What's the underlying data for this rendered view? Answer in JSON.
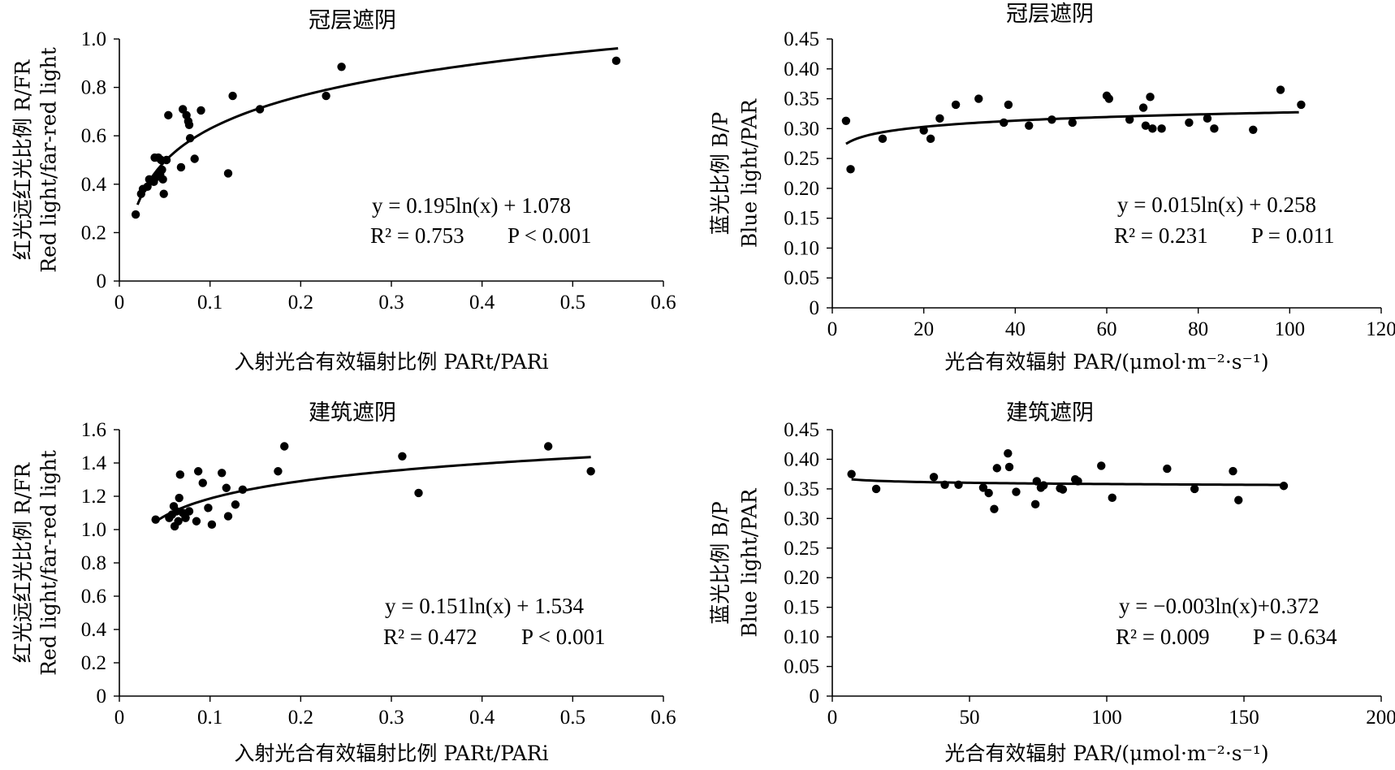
{
  "chart_data": [
    {
      "type": "scatter",
      "title": "冠层遮阴",
      "xlabel": "入射光合有效辐射比例 PARt/PARi",
      "ylabel": [
        "红光远红光比例 R/FR",
        "Red light/far-red light"
      ],
      "xlim": [
        0,
        0.6
      ],
      "ylim": [
        0,
        1.0
      ],
      "xticks": [
        "0",
        "0.1",
        "0.2",
        "0.3",
        "0.4",
        "0.5",
        "0.6"
      ],
      "yticks": [
        "0",
        "0.2",
        "0.4",
        "0.6",
        "0.8",
        "1.0"
      ],
      "equation": "y = 0.195ln(x) + 1.078",
      "r2": "R² = 0.753",
      "p": "P < 0.001",
      "fit": {
        "type": "log",
        "a": 0.195,
        "b": 1.078,
        "xrange": [
          0.02,
          0.55
        ]
      },
      "points": [
        [
          0.018,
          0.275
        ],
        [
          0.024,
          0.36
        ],
        [
          0.026,
          0.38
        ],
        [
          0.031,
          0.39
        ],
        [
          0.033,
          0.42
        ],
        [
          0.038,
          0.41
        ],
        [
          0.039,
          0.51
        ],
        [
          0.041,
          0.43
        ],
        [
          0.043,
          0.51
        ],
        [
          0.045,
          0.44
        ],
        [
          0.046,
          0.5
        ],
        [
          0.047,
          0.46
        ],
        [
          0.048,
          0.42
        ],
        [
          0.049,
          0.36
        ],
        [
          0.052,
          0.5
        ],
        [
          0.054,
          0.685
        ],
        [
          0.068,
          0.47
        ],
        [
          0.07,
          0.71
        ],
        [
          0.074,
          0.685
        ],
        [
          0.076,
          0.66
        ],
        [
          0.077,
          0.645
        ],
        [
          0.078,
          0.59
        ],
        [
          0.083,
          0.505
        ],
        [
          0.09,
          0.705
        ],
        [
          0.12,
          0.445
        ],
        [
          0.125,
          0.765
        ],
        [
          0.155,
          0.71
        ],
        [
          0.228,
          0.765
        ],
        [
          0.245,
          0.885
        ],
        [
          0.548,
          0.91
        ]
      ]
    },
    {
      "type": "scatter",
      "title": "冠层遮阴",
      "xlabel": "光合有效辐射 PAR/(μmol·m⁻²·s⁻¹)",
      "ylabel": [
        "蓝光比例 B/P",
        "Blue light/PAR"
      ],
      "xlim": [
        0,
        120
      ],
      "ylim": [
        0,
        0.45
      ],
      "xticks": [
        "0",
        "20",
        "40",
        "60",
        "80",
        "100",
        "120"
      ],
      "yticks": [
        "0",
        "0.05",
        "0.10",
        "0.15",
        "0.20",
        "0.25",
        "0.30",
        "0.35",
        "0.40",
        "0.45"
      ],
      "equation": "y = 0.015ln(x) + 0.258",
      "r2": "R² = 0.231",
      "p": "P = 0.011",
      "fit": {
        "type": "log",
        "a": 0.015,
        "b": 0.258,
        "xrange": [
          3,
          102
        ]
      },
      "points": [
        [
          3,
          0.313
        ],
        [
          4,
          0.232
        ],
        [
          11,
          0.283
        ],
        [
          20,
          0.297
        ],
        [
          21.5,
          0.283
        ],
        [
          23.5,
          0.317
        ],
        [
          27,
          0.34
        ],
        [
          32,
          0.35
        ],
        [
          37.5,
          0.31
        ],
        [
          38.5,
          0.34
        ],
        [
          43,
          0.305
        ],
        [
          48,
          0.315
        ],
        [
          52.5,
          0.31
        ],
        [
          60,
          0.355
        ],
        [
          60.5,
          0.35
        ],
        [
          65,
          0.315
        ],
        [
          68,
          0.335
        ],
        [
          68.5,
          0.305
        ],
        [
          69.5,
          0.353
        ],
        [
          70,
          0.3
        ],
        [
          72,
          0.3
        ],
        [
          78,
          0.31
        ],
        [
          82,
          0.317
        ],
        [
          83.5,
          0.3
        ],
        [
          92,
          0.298
        ],
        [
          98,
          0.365
        ],
        [
          102.5,
          0.34
        ]
      ]
    },
    {
      "type": "scatter",
      "title": "建筑遮阴",
      "xlabel": "入射光合有效辐射比例 PARt/PARi",
      "ylabel": [
        "红光远红光比例 R/FR",
        "Red light/far-red light"
      ],
      "xlim": [
        0,
        0.6
      ],
      "ylim": [
        0,
        1.6
      ],
      "xticks": [
        "0",
        "0.1",
        "0.2",
        "0.3",
        "0.4",
        "0.5",
        "0.6"
      ],
      "yticks": [
        "0",
        "0.2",
        "0.4",
        "0.6",
        "0.8",
        "1.0",
        "1.2",
        "1.4",
        "1.6"
      ],
      "equation": "y = 0.151ln(x) + 1.534",
      "r2": "R² = 0.472",
      "p": "P < 0.001",
      "fit": {
        "type": "log",
        "a": 0.151,
        "b": 1.534,
        "xrange": [
          0.04,
          0.52
        ]
      },
      "points": [
        [
          0.04,
          1.06
        ],
        [
          0.055,
          1.07
        ],
        [
          0.058,
          1.09
        ],
        [
          0.06,
          1.14
        ],
        [
          0.061,
          1.02
        ],
        [
          0.063,
          1.11
        ],
        [
          0.065,
          1.05
        ],
        [
          0.066,
          1.19
        ],
        [
          0.067,
          1.33
        ],
        [
          0.07,
          1.1
        ],
        [
          0.073,
          1.07
        ],
        [
          0.077,
          1.11
        ],
        [
          0.085,
          1.05
        ],
        [
          0.087,
          1.35
        ],
        [
          0.092,
          1.28
        ],
        [
          0.098,
          1.13
        ],
        [
          0.102,
          1.03
        ],
        [
          0.113,
          1.34
        ],
        [
          0.118,
          1.25
        ],
        [
          0.12,
          1.08
        ],
        [
          0.128,
          1.15
        ],
        [
          0.136,
          1.24
        ],
        [
          0.175,
          1.35
        ],
        [
          0.182,
          1.5
        ],
        [
          0.312,
          1.44
        ],
        [
          0.33,
          1.22
        ],
        [
          0.473,
          1.5
        ],
        [
          0.52,
          1.35
        ]
      ]
    },
    {
      "type": "scatter",
      "title": "建筑遮阴",
      "xlabel": "光合有效辐射 PAR/(μmol·m⁻²·s⁻¹)",
      "ylabel": [
        "蓝光比例 B/P",
        "Blue light/PAR"
      ],
      "xlim": [
        0,
        200
      ],
      "ylim": [
        0,
        0.45
      ],
      "xticks": [
        "0",
        "50",
        "100",
        "150",
        "200"
      ],
      "yticks": [
        "0",
        "0.05",
        "0.10",
        "0.15",
        "0.20",
        "0.25",
        "0.30",
        "0.35",
        "0.40",
        "0.45"
      ],
      "equation": "y = −0.003ln(x)+0.372",
      "r2": "R² = 0.009",
      "p": "P = 0.634",
      "fit": {
        "type": "log",
        "a": -0.003,
        "b": 0.372,
        "xrange": [
          7,
          165
        ]
      },
      "points": [
        [
          7,
          0.375
        ],
        [
          16,
          0.35
        ],
        [
          37,
          0.37
        ],
        [
          41,
          0.357
        ],
        [
          46,
          0.357
        ],
        [
          55,
          0.352
        ],
        [
          57,
          0.343
        ],
        [
          59,
          0.316
        ],
        [
          60,
          0.385
        ],
        [
          64,
          0.41
        ],
        [
          64.5,
          0.387
        ],
        [
          67,
          0.345
        ],
        [
          74,
          0.324
        ],
        [
          74.5,
          0.363
        ],
        [
          76,
          0.352
        ],
        [
          77,
          0.356
        ],
        [
          83,
          0.351
        ],
        [
          84,
          0.349
        ],
        [
          88.5,
          0.366
        ],
        [
          89.5,
          0.363
        ],
        [
          98,
          0.389
        ],
        [
          102,
          0.335
        ],
        [
          122,
          0.384
        ],
        [
          132,
          0.35
        ],
        [
          146,
          0.38
        ],
        [
          148,
          0.331
        ],
        [
          164.5,
          0.355
        ]
      ]
    }
  ]
}
